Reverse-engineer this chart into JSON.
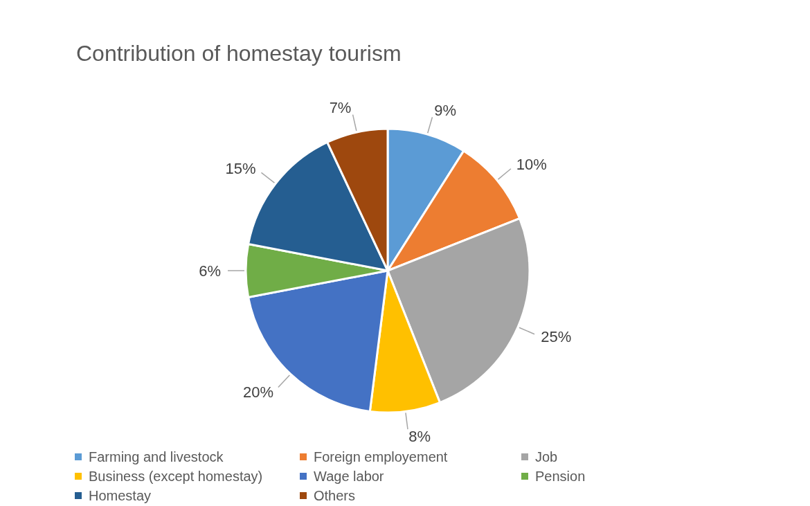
{
  "chart_data": {
    "type": "pie",
    "title": "Contribution of homestay tourism",
    "categories": [
      "Farming and livestock",
      "Foreign employement",
      "Job",
      "Business (except homestay)",
      "Wage labor",
      "Pension",
      "Homestay",
      "Others"
    ],
    "values": [
      9,
      10,
      25,
      8,
      20,
      6,
      15,
      7
    ],
    "value_labels": [
      "9%",
      "10%",
      "25%",
      "8%",
      "20%",
      "6%",
      "15%",
      "7%"
    ],
    "colors": [
      "#5b9bd5",
      "#ed7d31",
      "#a5a5a5",
      "#ffc000",
      "#4472c4",
      "#70ad47",
      "#255e91",
      "#9e480e"
    ],
    "legend": "bottom"
  }
}
